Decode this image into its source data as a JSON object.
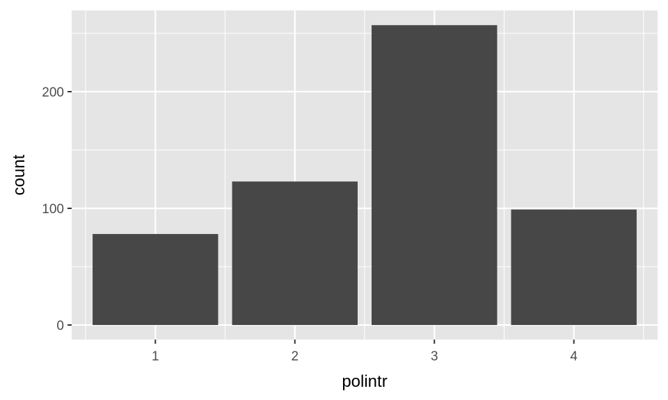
{
  "chart_data": {
    "type": "bar",
    "title": "",
    "xlabel": "polintr",
    "ylabel": "count",
    "categories": [
      "1",
      "2",
      "3",
      "4"
    ],
    "values": [
      78,
      123,
      257,
      99
    ],
    "ylim": [
      0,
      270
    ],
    "yticks": [
      0,
      100,
      200
    ],
    "grid": true,
    "colors": {
      "panel": "#e5e5e5",
      "grid_major": "#ffffff",
      "bar": "#474747",
      "tick_text": "#4d4d4d",
      "title_text": "#000000"
    }
  }
}
